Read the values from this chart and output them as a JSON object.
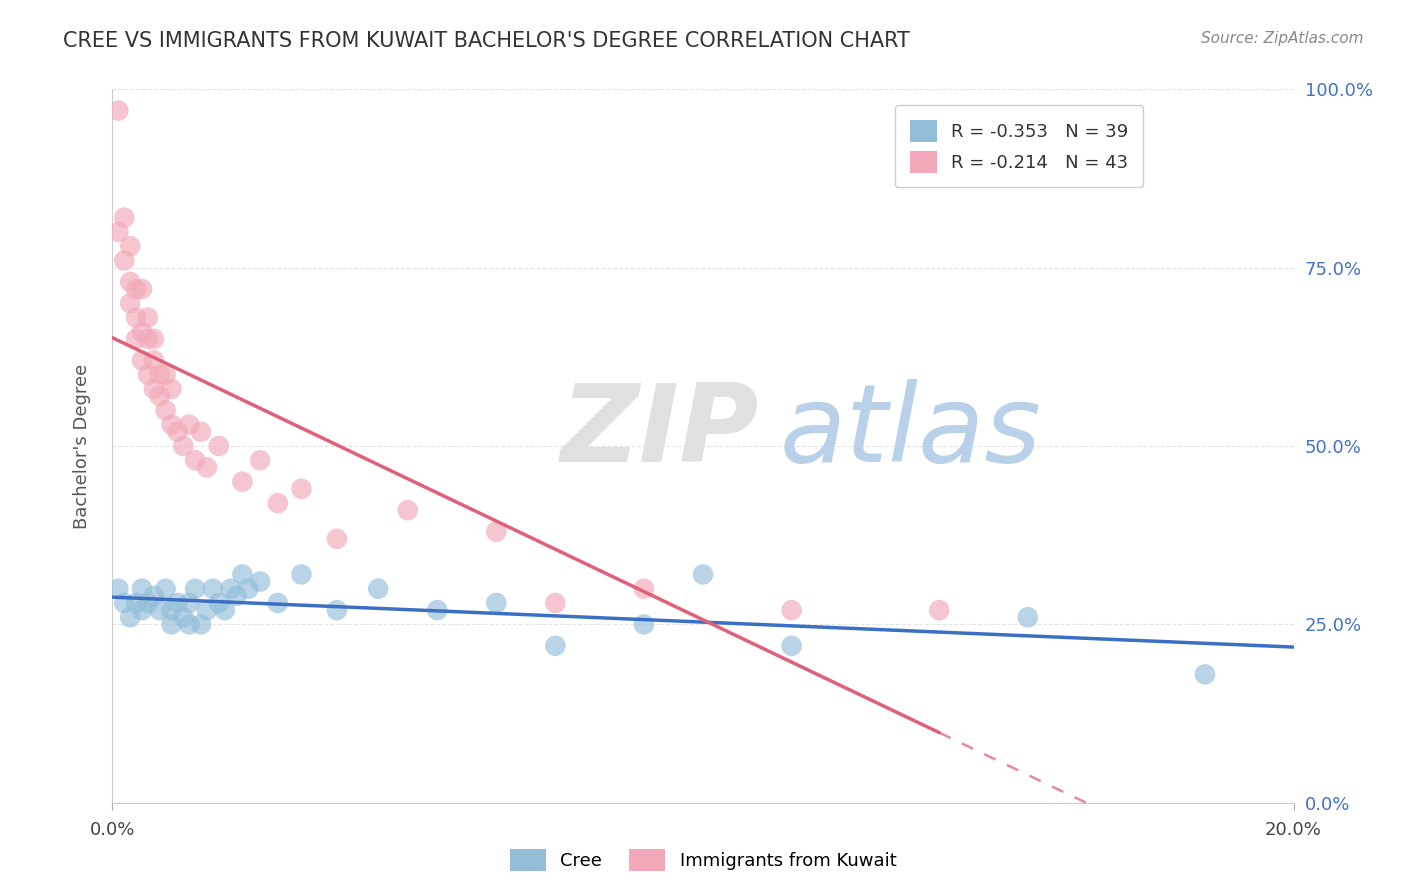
{
  "title": "CREE VS IMMIGRANTS FROM KUWAIT BACHELOR'S DEGREE CORRELATION CHART",
  "source": "Source: ZipAtlas.com",
  "ylabel": "Bachelor's Degree",
  "cree_R": -0.353,
  "cree_N": 39,
  "kuwait_R": -0.214,
  "kuwait_N": 43,
  "blue_color": "#92BDD9",
  "pink_color": "#F2A8B8",
  "trend_blue": "#3A6FC4",
  "trend_pink": "#E0607A",
  "background_color": "#ffffff",
  "xmin": 0.0,
  "xmax": 0.2,
  "ymin": 0.0,
  "ymax": 1.0,
  "cree_x": [
    0.001,
    0.002,
    0.003,
    0.004,
    0.005,
    0.005,
    0.006,
    0.007,
    0.008,
    0.009,
    0.01,
    0.01,
    0.011,
    0.012,
    0.013,
    0.013,
    0.014,
    0.015,
    0.016,
    0.017,
    0.018,
    0.019,
    0.02,
    0.021,
    0.022,
    0.023,
    0.025,
    0.028,
    0.032,
    0.038,
    0.045,
    0.055,
    0.065,
    0.075,
    0.09,
    0.1,
    0.115,
    0.155,
    0.185
  ],
  "cree_y": [
    0.3,
    0.28,
    0.26,
    0.28,
    0.27,
    0.3,
    0.28,
    0.29,
    0.27,
    0.3,
    0.27,
    0.25,
    0.28,
    0.26,
    0.28,
    0.25,
    0.3,
    0.25,
    0.27,
    0.3,
    0.28,
    0.27,
    0.3,
    0.29,
    0.32,
    0.3,
    0.31,
    0.28,
    0.32,
    0.27,
    0.3,
    0.27,
    0.28,
    0.22,
    0.25,
    0.32,
    0.22,
    0.26,
    0.18
  ],
  "kuwait_x": [
    0.001,
    0.001,
    0.002,
    0.002,
    0.003,
    0.003,
    0.003,
    0.004,
    0.004,
    0.004,
    0.005,
    0.005,
    0.005,
    0.006,
    0.006,
    0.006,
    0.007,
    0.007,
    0.007,
    0.008,
    0.008,
    0.009,
    0.009,
    0.01,
    0.01,
    0.011,
    0.012,
    0.013,
    0.014,
    0.015,
    0.016,
    0.018,
    0.022,
    0.025,
    0.028,
    0.032,
    0.038,
    0.05,
    0.065,
    0.075,
    0.09,
    0.115,
    0.14
  ],
  "kuwait_y": [
    0.97,
    0.8,
    0.82,
    0.76,
    0.78,
    0.73,
    0.7,
    0.72,
    0.68,
    0.65,
    0.66,
    0.62,
    0.72,
    0.65,
    0.6,
    0.68,
    0.62,
    0.58,
    0.65,
    0.57,
    0.6,
    0.55,
    0.6,
    0.53,
    0.58,
    0.52,
    0.5,
    0.53,
    0.48,
    0.52,
    0.47,
    0.5,
    0.45,
    0.48,
    0.42,
    0.44,
    0.37,
    0.41,
    0.38,
    0.28,
    0.3,
    0.27,
    0.27
  ],
  "grid_color": "#dddddd",
  "right_axis_color": "#4472C4"
}
